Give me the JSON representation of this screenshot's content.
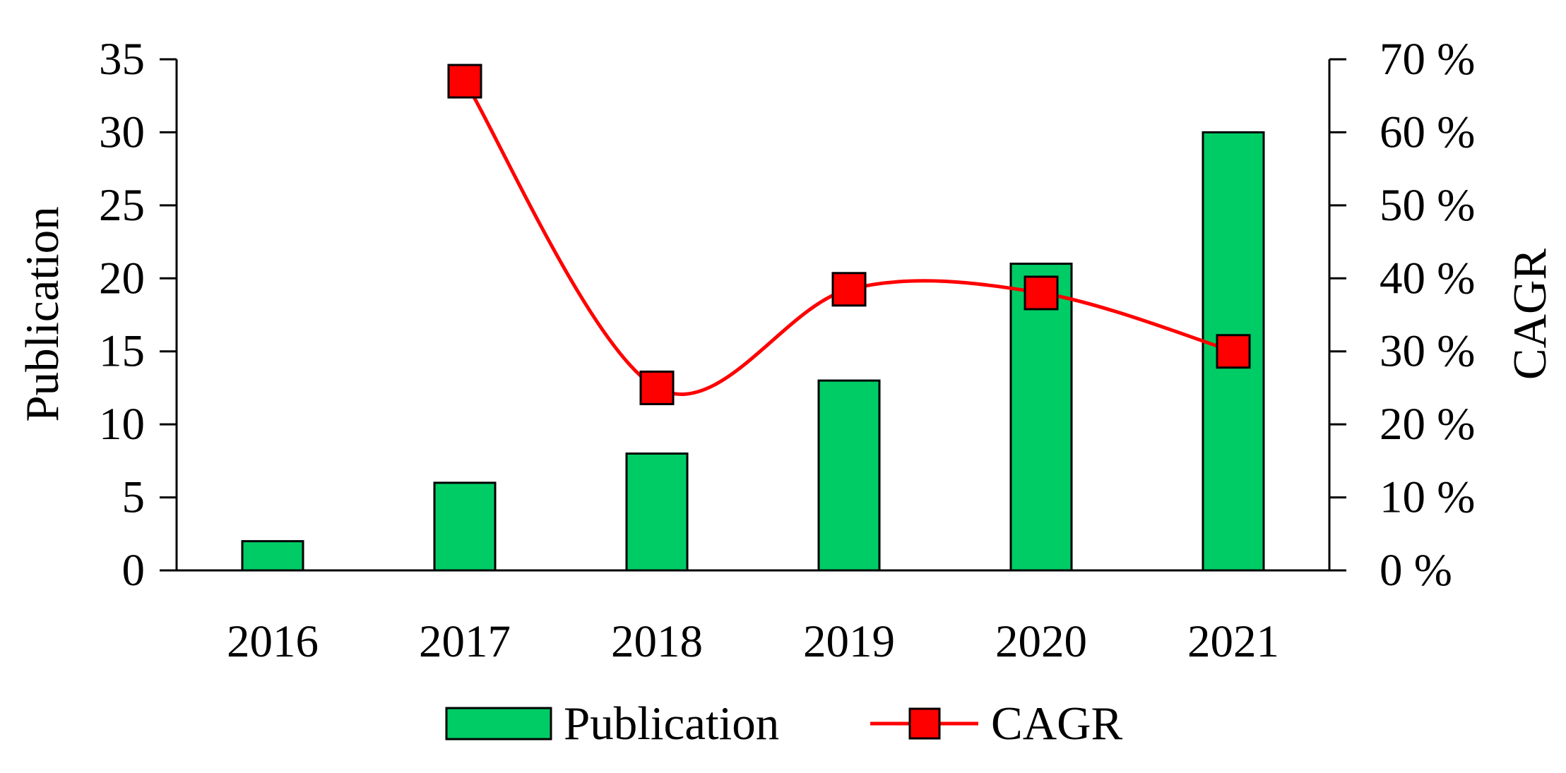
{
  "chart_data": {
    "type": "bar",
    "categories": [
      "2016",
      "2017",
      "2018",
      "2019",
      "2020",
      "2021"
    ],
    "series": [
      {
        "name": "Publication",
        "type": "bar",
        "axis": "left",
        "color": "#00CC66",
        "values": [
          2,
          6,
          8,
          13,
          21,
          30
        ]
      },
      {
        "name": "CAGR",
        "type": "line",
        "axis": "right",
        "color": "#FF0000",
        "marker": "square",
        "smooth": true,
        "values": [
          null,
          67,
          25,
          38.5,
          38,
          30
        ]
      }
    ],
    "ylabel": "Publication",
    "y2label": "CAGR",
    "ylim": [
      0,
      35
    ],
    "y2lim": [
      0,
      70
    ],
    "yticks": [
      "0",
      "5",
      "10",
      "15",
      "20",
      "25",
      "30",
      "35"
    ],
    "y2ticks": [
      "0 %",
      "10 %",
      "20 %",
      "30 %",
      "40 %",
      "50 %",
      "60 %",
      "70 %"
    ],
    "grid": false,
    "legend": "bottom"
  }
}
